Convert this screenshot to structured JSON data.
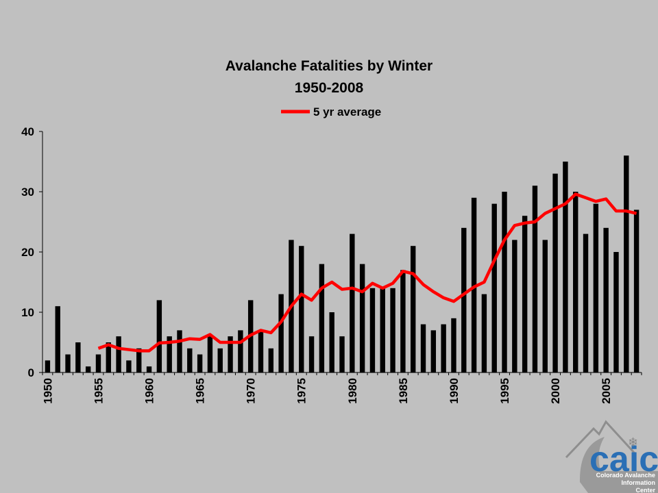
{
  "chart_data": {
    "type": "bar",
    "title": "Avalanche Fatalities by Winter",
    "subtitle": "1950-2008",
    "xlabel": "",
    "ylabel": "",
    "ylim": [
      0,
      40
    ],
    "yticks": [
      0,
      10,
      20,
      30,
      40
    ],
    "xticks": [
      "1950",
      "1955",
      "1960",
      "1965",
      "1970",
      "1975",
      "1980",
      "1985",
      "1990",
      "1995",
      "2000",
      "2005"
    ],
    "grid": false,
    "legend_position": "top",
    "x": [
      1950,
      1951,
      1952,
      1953,
      1954,
      1955,
      1956,
      1957,
      1958,
      1959,
      1960,
      1961,
      1962,
      1963,
      1964,
      1965,
      1966,
      1967,
      1968,
      1969,
      1970,
      1971,
      1972,
      1973,
      1974,
      1975,
      1976,
      1977,
      1978,
      1979,
      1980,
      1981,
      1982,
      1983,
      1984,
      1985,
      1986,
      1987,
      1988,
      1989,
      1990,
      1991,
      1992,
      1993,
      1994,
      1995,
      1996,
      1997,
      1998,
      1999,
      2000,
      2001,
      2002,
      2003,
      2004,
      2005,
      2006,
      2007,
      2008
    ],
    "series": [
      {
        "type": "bar",
        "color": "#000000",
        "values": [
          2,
          11,
          3,
          5,
          1,
          3,
          5,
          6,
          2,
          4,
          1,
          12,
          6,
          7,
          4,
          3,
          6,
          4,
          6,
          7,
          12,
          7,
          4,
          13,
          22,
          21,
          6,
          18,
          10,
          6,
          23,
          18,
          14,
          14,
          14,
          17,
          21,
          8,
          7,
          8,
          9,
          24,
          29,
          13,
          28,
          30,
          22,
          26,
          31,
          22,
          33,
          35,
          30,
          23,
          28,
          24,
          20,
          36,
          27
        ]
      },
      {
        "type": "line",
        "name": "5 yr average",
        "color": "#ff0000",
        "values": [
          null,
          null,
          null,
          null,
          null,
          4.0,
          4.6,
          4.0,
          3.8,
          3.6,
          3.6,
          4.9,
          5.0,
          5.2,
          5.6,
          5.5,
          6.3,
          5.0,
          5.0,
          5.0,
          6.2,
          7.0,
          6.6,
          8.4,
          11.0,
          13.0,
          12.0,
          14.0,
          15.0,
          13.8,
          14.0,
          13.4,
          14.8,
          14.0,
          14.8,
          16.8,
          16.4,
          14.6,
          13.4,
          12.4,
          11.8,
          13.0,
          14.2,
          15.0,
          18.6,
          22.0,
          24.4,
          24.8,
          25.0,
          26.4,
          27.2,
          28.0,
          29.6,
          29.0,
          28.4,
          28.8,
          26.8,
          26.8,
          26.4
        ]
      }
    ]
  },
  "logo": {
    "name": "caic",
    "icon": "snowflake-icon",
    "brand_color": "#2a6fb5",
    "subtext": [
      "Colorado Avalanche",
      "Information",
      "Center"
    ]
  }
}
